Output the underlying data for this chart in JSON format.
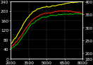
{
  "background_color": "#000000",
  "grid_color": "#3a3a3a",
  "x_min": 2000,
  "x_max": 8000,
  "y_left_min": 0,
  "y_left_max": 240,
  "y_right_min": 180,
  "y_right_max": 400,
  "x_ticks": [
    2000,
    3500,
    5000,
    6500,
    8000
  ],
  "y_left_ticks": [
    0,
    40,
    80,
    120,
    160,
    200,
    240
  ],
  "y_right_ticks": [
    180,
    200,
    250,
    300,
    350,
    400
  ],
  "tick_color": "#ffffff",
  "tick_fontsize": 4.2,
  "line_width": 0.75,
  "yellow_color": "#ffff00",
  "red_color": "#ff2200",
  "green_color": "#00bb00",
  "yellow_x": [
    2000,
    2100,
    2200,
    2300,
    2400,
    2500,
    2600,
    2700,
    2800,
    2900,
    3000,
    3100,
    3200,
    3300,
    3400,
    3500,
    3600,
    3700,
    3800,
    3900,
    4000,
    4100,
    4200,
    4300,
    4400,
    4500,
    4600,
    4700,
    4800,
    4900,
    5000,
    5100,
    5200,
    5300,
    5400,
    5500,
    5600,
    5700,
    5800,
    5900,
    6000,
    6100,
    6200,
    6300,
    6400,
    6500,
    6600,
    6700,
    6800,
    6900,
    7000,
    7100,
    7200,
    7300,
    7400,
    7500,
    7600,
    7700,
    7800,
    7900,
    8000
  ],
  "yellow_y": [
    62,
    68,
    75,
    82,
    89,
    97,
    105,
    113,
    122,
    131,
    140,
    149,
    157,
    164,
    171,
    178,
    184,
    189,
    194,
    198,
    201,
    204,
    207,
    209,
    211,
    213,
    214,
    215,
    216,
    216,
    217,
    217,
    218,
    219,
    220,
    221,
    222,
    223,
    224,
    224,
    225,
    226,
    227,
    228,
    229,
    230,
    231,
    232,
    233,
    234,
    235,
    236,
    237,
    237,
    238,
    238,
    238,
    239,
    239,
    239,
    239
  ],
  "red_x": [
    2000,
    2100,
    2200,
    2300,
    2400,
    2500,
    2600,
    2700,
    2800,
    2900,
    3000,
    3100,
    3200,
    3300,
    3400,
    3500,
    3600,
    3700,
    3800,
    3900,
    4000,
    4100,
    4200,
    4300,
    4400,
    4500,
    4600,
    4700,
    4800,
    4900,
    5000,
    5100,
    5200,
    5300,
    5400,
    5500,
    5600,
    5700,
    5800,
    5900,
    6000,
    6100,
    6200,
    6300,
    6400,
    6500,
    6600,
    6700,
    6800,
    6900,
    7000,
    7100,
    7200,
    7300,
    7400,
    7500,
    7600,
    7700,
    7800,
    7900,
    8000
  ],
  "red_y": [
    48,
    52,
    56,
    61,
    67,
    73,
    79,
    86,
    93,
    100,
    108,
    116,
    123,
    130,
    137,
    144,
    150,
    156,
    161,
    166,
    170,
    174,
    177,
    180,
    183,
    185,
    187,
    188,
    189,
    190,
    191,
    192,
    193,
    194,
    195,
    196,
    197,
    198,
    199,
    199,
    200,
    200,
    200,
    201,
    201,
    201,
    201,
    201,
    200,
    200,
    199,
    199,
    198,
    197,
    196,
    195,
    194,
    193,
    192,
    191,
    190
  ],
  "green_x": [
    2000,
    2100,
    2200,
    2300,
    2400,
    2500,
    2600,
    2700,
    2800,
    2900,
    3000,
    3100,
    3200,
    3300,
    3400,
    3500,
    3600,
    3700,
    3800,
    3900,
    4000,
    4100,
    4200,
    4300,
    4400,
    4500,
    4600,
    4700,
    4800,
    4900,
    5000,
    5100,
    5200,
    5300,
    5400,
    5500,
    5600,
    5700,
    5800,
    5900,
    6000,
    6100,
    6200,
    6300,
    6400,
    6500,
    6600,
    6700,
    6800,
    6900,
    7000,
    7100,
    7200,
    7300,
    7400,
    7500,
    7600,
    7700,
    7800,
    7900,
    8000
  ],
  "green_y": [
    38,
    42,
    46,
    50,
    55,
    61,
    67,
    73,
    80,
    87,
    94,
    101,
    108,
    115,
    122,
    129,
    135,
    141,
    146,
    151,
    155,
    159,
    162,
    165,
    168,
    170,
    172,
    174,
    175,
    176,
    177,
    178,
    179,
    180,
    181,
    181,
    182,
    183,
    183,
    184,
    184,
    185,
    185,
    186,
    186,
    186,
    187,
    187,
    187,
    188,
    188,
    188,
    188,
    188,
    188,
    188,
    188,
    188,
    187,
    187,
    186
  ]
}
